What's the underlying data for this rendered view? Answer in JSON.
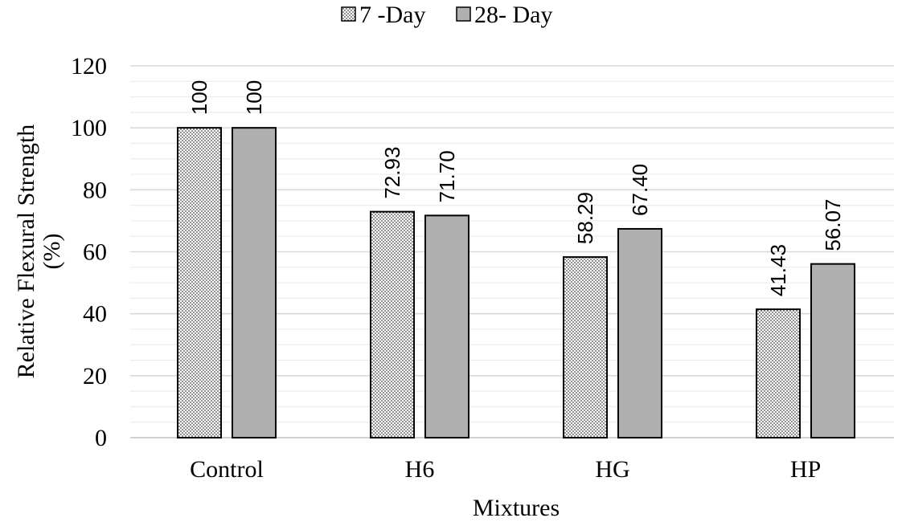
{
  "chart_data": {
    "type": "bar",
    "categories": [
      "Control",
      "H6",
      "HG",
      "HP"
    ],
    "series": [
      {
        "name": "7 -Day",
        "values": [
          100,
          72.93,
          58.29,
          41.43
        ],
        "labels": [
          "100",
          "72.93",
          "58.29",
          "41.43"
        ],
        "fill": "dotted",
        "color": "#ffffff"
      },
      {
        "name": "28- Day",
        "values": [
          100,
          71.7,
          67.4,
          56.07
        ],
        "labels": [
          "100",
          "71.70",
          "67.40",
          "56.07"
        ],
        "fill": "solid",
        "color": "#b0b0b0"
      }
    ],
    "xlabel": "Mixtures",
    "ylabel_line1": "Relative Flexural Strength",
    "ylabel_line2": "(%)",
    "ylim": [
      0,
      120
    ],
    "yticks": [
      0,
      20,
      40,
      60,
      80,
      100,
      120
    ],
    "ytick_labels": [
      "0",
      "20",
      "40",
      "60",
      "80",
      "100",
      "120"
    ],
    "grid": true,
    "legend_position": "top-center",
    "data_labels_rotated": true
  }
}
